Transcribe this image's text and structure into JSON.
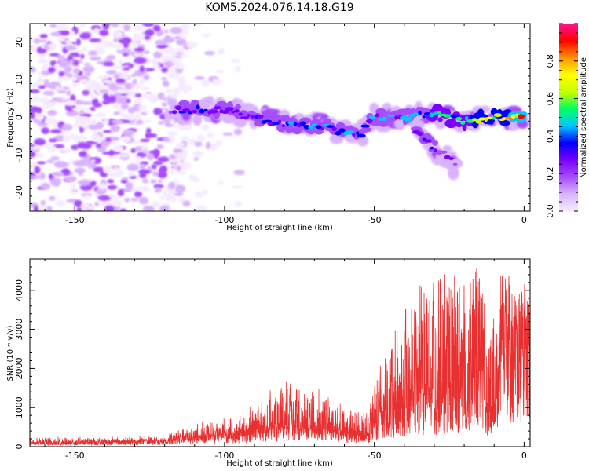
{
  "figure": {
    "title": "KOM5.2024.076.14.18.G19"
  },
  "chart_data": [
    {
      "type": "heatmap",
      "title": "KOM5.2024.076.14.18.G19",
      "xlabel": "Height of straight line (km)",
      "ylabel": "Frequency (Hz)",
      "xlim": [
        -165,
        2
      ],
      "ylim": [
        -25,
        25
      ],
      "x_ticks": [
        -150,
        -100,
        -50,
        0
      ],
      "y_ticks": [
        -20,
        -10,
        0,
        10,
        20
      ],
      "colorbar": {
        "label": "Normalized spectral amplitude",
        "range": [
          0.0,
          1.0
        ],
        "ticks": [
          0.0,
          0.2,
          0.4,
          0.6,
          0.8
        ],
        "colormap": [
          "#f5eaff",
          "#d9b3ff",
          "#a64dff",
          "#7a00ff",
          "#0000ff",
          "#00c8ff",
          "#00ff60",
          "#c8ff00",
          "#ffff00",
          "#ff9000",
          "#ff0000",
          "#ff1493"
        ]
      },
      "background_noise": {
        "x_range": [
          -165,
          -95
        ],
        "amplitude": 0.25
      },
      "ridges": [
        {
          "name": "main",
          "points": [
            [
              -118,
              2
            ],
            [
              -110,
              2
            ],
            [
              -100,
              2
            ],
            [
              -90,
              0
            ],
            [
              -80,
              -2
            ],
            [
              -70,
              -2
            ],
            [
              -60,
              -4
            ],
            [
              -55,
              -5
            ],
            [
              -50,
              0
            ],
            [
              -40,
              0
            ],
            [
              -30,
              1
            ],
            [
              -20,
              -1
            ],
            [
              -10,
              0
            ],
            [
              0,
              0
            ]
          ],
          "amplitude": [
            0.3,
            0.4,
            0.35,
            0.35,
            0.4,
            0.45,
            0.45,
            0.4,
            0.45,
            0.45,
            0.5,
            0.65,
            0.7,
            0.95
          ]
        },
        {
          "name": "branch",
          "points": [
            [
              -36,
              -4
            ],
            [
              -30,
              -8
            ],
            [
              -25,
              -11
            ],
            [
              -22,
              -14
            ]
          ],
          "amplitude": [
            0.35,
            0.35,
            0.3,
            0.25
          ]
        }
      ]
    },
    {
      "type": "line",
      "xlabel": "Height of straight line (km)",
      "ylabel": "SNR (10 * v/v)",
      "xlim": [
        -165,
        2
      ],
      "ylim": [
        0,
        4800
      ],
      "x_ticks": [
        -150,
        -100,
        -50,
        0
      ],
      "y_ticks": [
        0,
        1000,
        2000,
        3000,
        4000
      ],
      "color": "#e83030",
      "series": [
        {
          "values_envelope": [
            {
              "x": -165,
              "base": 100,
              "peak": 250
            },
            {
              "x": -140,
              "base": 120,
              "peak": 250
            },
            {
              "x": -120,
              "base": 150,
              "peak": 300
            },
            {
              "x": -110,
              "base": 250,
              "peak": 600
            },
            {
              "x": -100,
              "base": 300,
              "peak": 700
            },
            {
              "x": -90,
              "base": 400,
              "peak": 1100
            },
            {
              "x": -80,
              "base": 500,
              "peak": 1750
            },
            {
              "x": -70,
              "base": 450,
              "peak": 1550
            },
            {
              "x": -60,
              "base": 350,
              "peak": 1050
            },
            {
              "x": -52,
              "base": 250,
              "peak": 900
            },
            {
              "x": -48,
              "base": 900,
              "peak": 2200
            },
            {
              "x": -40,
              "base": 1200,
              "peak": 3700
            },
            {
              "x": -35,
              "base": 1500,
              "peak": 4200
            },
            {
              "x": -25,
              "base": 1200,
              "peak": 4500
            },
            {
              "x": -20,
              "base": 1500,
              "peak": 4200
            },
            {
              "x": -15,
              "base": 2500,
              "peak": 4800
            },
            {
              "x": -12,
              "base": 900,
              "peak": 3000
            },
            {
              "x": -8,
              "base": 2500,
              "peak": 4500
            },
            {
              "x": -5,
              "base": 3000,
              "peak": 4500
            },
            {
              "x": 0,
              "base": 3200,
              "peak": 4200
            },
            {
              "x": 2,
              "base": 3000,
              "peak": 3800
            }
          ]
        }
      ]
    }
  ]
}
